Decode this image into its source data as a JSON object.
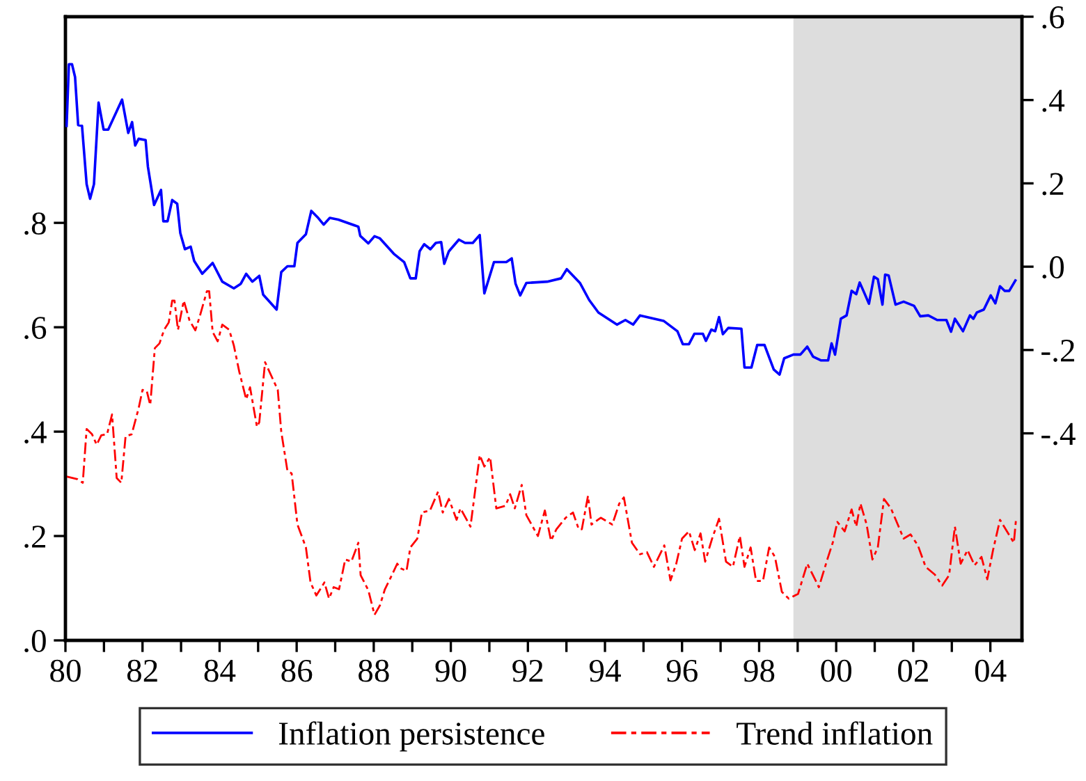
{
  "chart_data": {
    "type": "line",
    "xlim": [
      1980,
      2004.82
    ],
    "xticks": [
      {
        "value": 1980,
        "label": "80"
      },
      {
        "value": 1981,
        "label": null
      },
      {
        "value": 1982,
        "label": "82"
      },
      {
        "value": 1983,
        "label": null
      },
      {
        "value": 1984,
        "label": "84"
      },
      {
        "value": 1985,
        "label": null
      },
      {
        "value": 1986,
        "label": "86"
      },
      {
        "value": 1987,
        "label": null
      },
      {
        "value": 1988,
        "label": "88"
      },
      {
        "value": 1989,
        "label": null
      },
      {
        "value": 1990,
        "label": "90"
      },
      {
        "value": 1991,
        "label": null
      },
      {
        "value": 1992,
        "label": "92"
      },
      {
        "value": 1993,
        "label": null
      },
      {
        "value": 1994,
        "label": "94"
      },
      {
        "value": 1995,
        "label": null
      },
      {
        "value": 1996,
        "label": "96"
      },
      {
        "value": 1997,
        "label": null
      },
      {
        "value": 1998,
        "label": "98"
      },
      {
        "value": 1999,
        "label": null
      },
      {
        "value": 2000,
        "label": "00"
      },
      {
        "value": 2001,
        "label": null
      },
      {
        "value": 2002,
        "label": "02"
      },
      {
        "value": 2003,
        "label": null
      },
      {
        "value": 2004,
        "label": "04"
      }
    ],
    "ylim": [
      0,
      1.195
    ],
    "yticks": [
      {
        "value": 0,
        "label": ".0"
      },
      {
        "value": 0.2,
        "label": ".2"
      },
      {
        "value": 0.4,
        "label": ".4"
      },
      {
        "value": 0.6,
        "label": ".6"
      },
      {
        "value": 0.8,
        "label": ".8"
      }
    ],
    "y2lim": [
      -0.897,
      0.6
    ],
    "y2ticks": [
      {
        "value": -0.4,
        "label": "-.4"
      },
      {
        "value": -0.2,
        "label": "-.2"
      },
      {
        "value": 0,
        "label": ".0"
      },
      {
        "value": 0.2,
        "label": ".2"
      },
      {
        "value": 0.4,
        "label": ".4"
      },
      {
        "value": 0.6,
        "label": ".6"
      }
    ],
    "bands": [
      {
        "axis": "x",
        "from": 1998.89,
        "to": 2004.82,
        "color": "#dddddd"
      }
    ],
    "legend": "bottom",
    "grid": false,
    "series": [
      {
        "name": "Inflation persistence",
        "color": "#0000ff",
        "axis": "y2",
        "line_style": "solid",
        "x": [
          1980.03,
          1980.09,
          1980.17,
          1980.25,
          1980.33,
          1980.43,
          1980.55,
          1980.64,
          1980.74,
          1980.86,
          1980.99,
          1981.11,
          1981.47,
          1981.63,
          1981.73,
          1981.81,
          1981.9,
          1982.08,
          1982.14,
          1982.3,
          1982.48,
          1982.54,
          1982.65,
          1982.77,
          1982.9,
          1982.98,
          1983.1,
          1983.25,
          1983.34,
          1983.55,
          1983.82,
          1984.07,
          1984.37,
          1984.55,
          1984.69,
          1984.85,
          1985.03,
          1985.13,
          1985.48,
          1985.6,
          1985.76,
          1985.94,
          1986.02,
          1986.24,
          1986.38,
          1986.54,
          1986.7,
          1986.86,
          1987.08,
          1987.6,
          1987.65,
          1987.86,
          1988.02,
          1988.16,
          1988.52,
          1988.79,
          1988.95,
          1989.09,
          1989.19,
          1989.31,
          1989.47,
          1989.61,
          1989.75,
          1989.83,
          1989.95,
          1990.21,
          1990.37,
          1990.57,
          1990.75,
          1990.87,
          1991.12,
          1991.44,
          1991.58,
          1991.68,
          1991.8,
          1991.96,
          1992.5,
          1992.86,
          1993.01,
          1993.35,
          1993.59,
          1993.83,
          1994.31,
          1994.53,
          1994.73,
          1994.91,
          1995.52,
          1995.88,
          1996.02,
          1996.18,
          1996.32,
          1996.54,
          1996.62,
          1996.76,
          1996.86,
          1996.96,
          1997.06,
          1997.2,
          1997.54,
          1997.62,
          1997.8,
          1997.95,
          1998.14,
          1998.38,
          1998.53,
          1998.65,
          1998.89,
          1999.07,
          1999.25,
          1999.4,
          1999.61,
          1999.79,
          1999.88,
          1999.97,
          2000.12,
          2000.27,
          2000.4,
          2000.52,
          2000.61,
          2000.72,
          2000.85,
          2000.98,
          2001.08,
          2001.2,
          2001.27,
          2001.36,
          2001.54,
          2001.75,
          2002.02,
          2002.18,
          2002.39,
          2002.62,
          2002.86,
          2002.98,
          2003.08,
          2003.29,
          2003.47,
          2003.56,
          2003.65,
          2003.83,
          2004.01,
          2004.13,
          2004.25,
          2004.37,
          2004.49,
          2004.65
        ],
        "values": [
          0.338,
          0.486,
          0.486,
          0.455,
          0.34,
          0.338,
          0.198,
          0.163,
          0.198,
          0.394,
          0.329,
          0.329,
          0.401,
          0.321,
          0.347,
          0.291,
          0.307,
          0.304,
          0.24,
          0.148,
          0.184,
          0.109,
          0.109,
          0.16,
          0.151,
          0.081,
          0.042,
          0.048,
          0.014,
          -0.017,
          0.009,
          -0.036,
          -0.052,
          -0.041,
          -0.017,
          -0.036,
          -0.022,
          -0.067,
          -0.103,
          -0.013,
          0.001,
          0.001,
          0.057,
          0.078,
          0.134,
          0.119,
          0.101,
          0.117,
          0.113,
          0.096,
          0.074,
          0.056,
          0.073,
          0.068,
          0.031,
          0.011,
          -0.028,
          -0.028,
          0.037,
          0.054,
          0.042,
          0.057,
          0.059,
          0.007,
          0.037,
          0.065,
          0.057,
          0.057,
          0.076,
          -0.064,
          0.011,
          0.011,
          0.02,
          -0.041,
          -0.069,
          -0.039,
          -0.036,
          -0.028,
          -0.006,
          -0.039,
          -0.08,
          -0.11,
          -0.139,
          -0.128,
          -0.139,
          -0.117,
          -0.13,
          -0.155,
          -0.186,
          -0.186,
          -0.161,
          -0.161,
          -0.178,
          -0.151,
          -0.155,
          -0.121,
          -0.162,
          -0.147,
          -0.149,
          -0.242,
          -0.242,
          -0.188,
          -0.188,
          -0.247,
          -0.259,
          -0.22,
          -0.211,
          -0.211,
          -0.192,
          -0.216,
          -0.225,
          -0.225,
          -0.184,
          -0.211,
          -0.125,
          -0.117,
          -0.058,
          -0.066,
          -0.038,
          -0.061,
          -0.089,
          -0.024,
          -0.03,
          -0.091,
          -0.019,
          -0.021,
          -0.091,
          -0.084,
          -0.094,
          -0.119,
          -0.117,
          -0.128,
          -0.128,
          -0.156,
          -0.125,
          -0.155,
          -0.117,
          -0.125,
          -0.11,
          -0.103,
          -0.069,
          -0.088,
          -0.047,
          -0.058,
          -0.058,
          -0.033
        ]
      },
      {
        "name": "Trend inflation",
        "color": "#ff0000",
        "axis": "y",
        "line_style": "dashed",
        "x": [
          1980.03,
          1980.31,
          1980.45,
          1980.55,
          1980.69,
          1980.81,
          1980.93,
          1981.08,
          1981.21,
          1981.33,
          1981.45,
          1981.56,
          1981.72,
          1981.9,
          1982.0,
          1982.11,
          1982.2,
          1982.32,
          1982.44,
          1982.56,
          1982.68,
          1982.77,
          1982.83,
          1982.92,
          1983.07,
          1983.22,
          1983.37,
          1983.49,
          1983.67,
          1983.73,
          1983.82,
          1983.95,
          1984.07,
          1984.25,
          1984.37,
          1984.51,
          1984.69,
          1984.79,
          1984.97,
          1985.03,
          1985.18,
          1985.51,
          1985.6,
          1985.76,
          1985.87,
          1986.02,
          1986.24,
          1986.36,
          1986.51,
          1986.72,
          1986.84,
          1986.96,
          1987.1,
          1987.26,
          1987.42,
          1987.6,
          1987.66,
          1987.86,
          1988.02,
          1988.16,
          1988.29,
          1988.47,
          1988.61,
          1988.7,
          1988.85,
          1988.95,
          1989.13,
          1989.25,
          1989.46,
          1989.67,
          1989.79,
          1989.95,
          1990.15,
          1990.25,
          1990.51,
          1990.75,
          1990.87,
          1991.02,
          1991.18,
          1991.42,
          1991.54,
          1991.66,
          1991.84,
          1991.96,
          1992.26,
          1992.44,
          1992.6,
          1992.74,
          1992.98,
          1993.17,
          1993.32,
          1993.4,
          1993.56,
          1993.65,
          1993.89,
          1994.19,
          1994.37,
          1994.49,
          1994.7,
          1994.91,
          1995.09,
          1995.27,
          1995.54,
          1995.7,
          1995.85,
          1996.0,
          1996.18,
          1996.33,
          1996.48,
          1996.6,
          1996.78,
          1996.96,
          1997.14,
          1997.32,
          1997.5,
          1997.62,
          1997.78,
          1997.92,
          1998.1,
          1998.26,
          1998.41,
          1998.59,
          1998.77,
          1999.01,
          1999.25,
          1999.55,
          1999.79,
          1999.91,
          2000.03,
          2000.22,
          2000.4,
          2000.52,
          2000.63,
          2000.79,
          2000.94,
          2001.08,
          2001.24,
          2001.42,
          2001.62,
          2001.75,
          2001.93,
          2002.12,
          2002.32,
          2002.56,
          2002.75,
          2002.93,
          2003.08,
          2003.23,
          2003.41,
          2003.59,
          2003.77,
          2003.92,
          2004.07,
          2004.25,
          2004.43,
          2004.61,
          2004.67
        ],
        "values": [
          0.314,
          0.309,
          0.302,
          0.405,
          0.395,
          0.375,
          0.393,
          0.395,
          0.433,
          0.311,
          0.302,
          0.391,
          0.395,
          0.445,
          0.48,
          0.478,
          0.451,
          0.56,
          0.569,
          0.595,
          0.609,
          0.651,
          0.651,
          0.595,
          0.651,
          0.613,
          0.594,
          0.622,
          0.669,
          0.669,
          0.591,
          0.573,
          0.605,
          0.595,
          0.565,
          0.515,
          0.462,
          0.485,
          0.409,
          0.418,
          0.533,
          0.48,
          0.4,
          0.325,
          0.32,
          0.222,
          0.178,
          0.111,
          0.086,
          0.111,
          0.08,
          0.102,
          0.098,
          0.155,
          0.151,
          0.187,
          0.125,
          0.096,
          0.049,
          0.067,
          0.098,
          0.125,
          0.147,
          0.138,
          0.133,
          0.178,
          0.195,
          0.245,
          0.249,
          0.285,
          0.245,
          0.271,
          0.231,
          0.253,
          0.218,
          0.355,
          0.333,
          0.351,
          0.253,
          0.258,
          0.28,
          0.253,
          0.298,
          0.24,
          0.2,
          0.249,
          0.191,
          0.213,
          0.235,
          0.245,
          0.213,
          0.213,
          0.277,
          0.222,
          0.235,
          0.222,
          0.262,
          0.274,
          0.187,
          0.165,
          0.169,
          0.141,
          0.182,
          0.115,
          0.147,
          0.195,
          0.209,
          0.173,
          0.205,
          0.151,
          0.195,
          0.233,
          0.151,
          0.141,
          0.2,
          0.141,
          0.178,
          0.114,
          0.114,
          0.178,
          0.16,
          0.093,
          0.08,
          0.089,
          0.147,
          0.102,
          0.16,
          0.187,
          0.227,
          0.209,
          0.251,
          0.218,
          0.262,
          0.222,
          0.155,
          0.178,
          0.271,
          0.253,
          0.218,
          0.195,
          0.203,
          0.182,
          0.141,
          0.126,
          0.105,
          0.125,
          0.218,
          0.147,
          0.173,
          0.144,
          0.16,
          0.117,
          0.173,
          0.231,
          0.209,
          0.187,
          0.235
        ]
      }
    ]
  }
}
